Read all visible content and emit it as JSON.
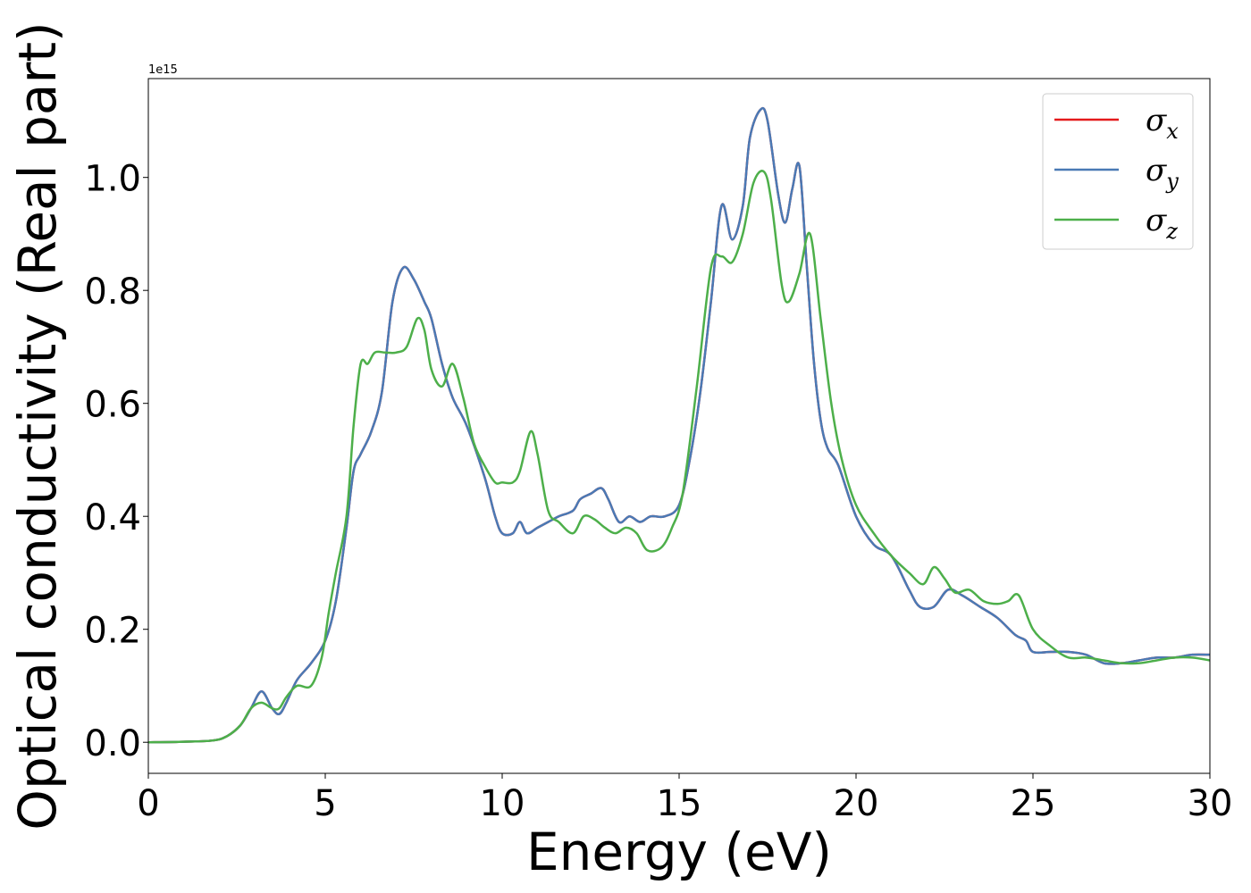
{
  "chart_data": {
    "type": "line",
    "xlabel": "Energy (eV)",
    "ylabel": "Optical conductivity (Real part)",
    "offset_label": "1e15",
    "xlim": [
      0,
      30
    ],
    "ylim": [
      -0.055,
      1.175
    ],
    "xticks": [
      0,
      5,
      10,
      15,
      20,
      25,
      30
    ],
    "xtick_labels": [
      "0",
      "5",
      "10",
      "15",
      "20",
      "25",
      "30"
    ],
    "yticks": [
      0.0,
      0.2,
      0.4,
      0.6,
      0.8,
      1.0
    ],
    "ytick_labels": [
      "0.0",
      "0.2",
      "0.4",
      "0.6",
      "0.8",
      "1.0"
    ],
    "y_multiplier": 1000000000000000.0,
    "grid": false,
    "legend_position": "top-right",
    "series": [
      {
        "name": "σx",
        "symbol": "σ",
        "subscript": "x",
        "color": "#e41a1c",
        "x": [
          0,
          1,
          1.8,
          2.2,
          2.6,
          2.9,
          3.2,
          3.5,
          3.7,
          3.9,
          4.2,
          4.6,
          5.0,
          5.3,
          5.6,
          5.8,
          6.0,
          6.3,
          6.6,
          6.9,
          7.2,
          7.5,
          7.8,
          8.0,
          8.3,
          8.6,
          9.0,
          9.5,
          9.8,
          10.0,
          10.3,
          10.5,
          10.7,
          11.0,
          11.3,
          11.6,
          12.0,
          12.2,
          12.5,
          12.8,
          13.0,
          13.3,
          13.6,
          13.9,
          14.2,
          14.6,
          15.0,
          15.3,
          15.6,
          15.9,
          16.2,
          16.5,
          16.8,
          17.0,
          17.3,
          17.5,
          17.8,
          18.0,
          18.2,
          18.4,
          18.6,
          18.8,
          19.0,
          19.2,
          19.5,
          20.0,
          20.5,
          21.0,
          21.5,
          21.8,
          22.2,
          22.6,
          23.0,
          23.5,
          24.0,
          24.5,
          24.8,
          25.0,
          25.5,
          26.0,
          26.5,
          27.0,
          27.5,
          28.0,
          28.5,
          29.0,
          29.5,
          30.0
        ],
        "y": [
          0.0,
          0.001,
          0.003,
          0.01,
          0.03,
          0.06,
          0.09,
          0.06,
          0.05,
          0.07,
          0.11,
          0.14,
          0.18,
          0.25,
          0.38,
          0.48,
          0.51,
          0.55,
          0.62,
          0.78,
          0.84,
          0.82,
          0.78,
          0.75,
          0.67,
          0.61,
          0.56,
          0.47,
          0.4,
          0.37,
          0.37,
          0.39,
          0.37,
          0.38,
          0.39,
          0.4,
          0.41,
          0.43,
          0.44,
          0.45,
          0.43,
          0.39,
          0.4,
          0.39,
          0.4,
          0.4,
          0.42,
          0.5,
          0.62,
          0.78,
          0.95,
          0.89,
          0.95,
          1.07,
          1.12,
          1.1,
          0.97,
          0.92,
          0.98,
          1.02,
          0.85,
          0.68,
          0.57,
          0.52,
          0.49,
          0.4,
          0.35,
          0.33,
          0.27,
          0.24,
          0.24,
          0.27,
          0.26,
          0.24,
          0.22,
          0.19,
          0.18,
          0.16,
          0.16,
          0.16,
          0.155,
          0.14,
          0.14,
          0.145,
          0.15,
          0.15,
          0.155,
          0.155
        ]
      },
      {
        "name": "σy",
        "symbol": "σ",
        "subscript": "y",
        "color": "#4a7ab5",
        "x": [
          0,
          1,
          1.8,
          2.2,
          2.6,
          2.9,
          3.2,
          3.5,
          3.7,
          3.9,
          4.2,
          4.6,
          5.0,
          5.3,
          5.6,
          5.8,
          6.0,
          6.3,
          6.6,
          6.9,
          7.2,
          7.5,
          7.8,
          8.0,
          8.3,
          8.6,
          9.0,
          9.5,
          9.8,
          10.0,
          10.3,
          10.5,
          10.7,
          11.0,
          11.3,
          11.6,
          12.0,
          12.2,
          12.5,
          12.8,
          13.0,
          13.3,
          13.6,
          13.9,
          14.2,
          14.6,
          15.0,
          15.3,
          15.6,
          15.9,
          16.2,
          16.5,
          16.8,
          17.0,
          17.3,
          17.5,
          17.8,
          18.0,
          18.2,
          18.4,
          18.6,
          18.8,
          19.0,
          19.2,
          19.5,
          20.0,
          20.5,
          21.0,
          21.5,
          21.8,
          22.2,
          22.6,
          23.0,
          23.5,
          24.0,
          24.5,
          24.8,
          25.0,
          25.5,
          26.0,
          26.5,
          27.0,
          27.5,
          28.0,
          28.5,
          29.0,
          29.5,
          30.0
        ],
        "y": [
          0.0,
          0.001,
          0.003,
          0.01,
          0.03,
          0.06,
          0.09,
          0.06,
          0.05,
          0.07,
          0.11,
          0.14,
          0.18,
          0.25,
          0.38,
          0.48,
          0.51,
          0.55,
          0.62,
          0.78,
          0.84,
          0.82,
          0.78,
          0.75,
          0.67,
          0.61,
          0.56,
          0.47,
          0.4,
          0.37,
          0.37,
          0.39,
          0.37,
          0.38,
          0.39,
          0.4,
          0.41,
          0.43,
          0.44,
          0.45,
          0.43,
          0.39,
          0.4,
          0.39,
          0.4,
          0.4,
          0.42,
          0.5,
          0.62,
          0.78,
          0.95,
          0.89,
          0.95,
          1.07,
          1.12,
          1.1,
          0.97,
          0.92,
          0.98,
          1.02,
          0.85,
          0.68,
          0.57,
          0.52,
          0.49,
          0.4,
          0.35,
          0.33,
          0.27,
          0.24,
          0.24,
          0.27,
          0.26,
          0.24,
          0.22,
          0.19,
          0.18,
          0.16,
          0.16,
          0.16,
          0.155,
          0.14,
          0.14,
          0.145,
          0.15,
          0.15,
          0.155,
          0.155
        ]
      },
      {
        "name": "σz",
        "symbol": "σ",
        "subscript": "z",
        "color": "#4daf4a",
        "x": [
          0,
          1,
          1.8,
          2.2,
          2.6,
          2.9,
          3.2,
          3.5,
          3.7,
          3.9,
          4.2,
          4.6,
          4.9,
          5.1,
          5.3,
          5.6,
          5.8,
          6.0,
          6.2,
          6.4,
          6.7,
          7.0,
          7.3,
          7.6,
          7.8,
          8.0,
          8.3,
          8.6,
          8.9,
          9.2,
          9.5,
          9.8,
          10.0,
          10.3,
          10.5,
          10.8,
          11.0,
          11.3,
          11.6,
          12.0,
          12.3,
          12.6,
          12.9,
          13.2,
          13.5,
          13.8,
          14.1,
          14.5,
          14.8,
          15.1,
          15.5,
          15.9,
          16.2,
          16.5,
          16.8,
          17.1,
          17.4,
          17.6,
          17.9,
          18.1,
          18.4,
          18.7,
          19.0,
          19.3,
          19.6,
          20.0,
          20.5,
          21.0,
          21.5,
          21.9,
          22.2,
          22.5,
          22.8,
          23.2,
          23.6,
          24.0,
          24.3,
          24.6,
          25.0,
          25.5,
          26.0,
          26.5,
          27.0,
          27.5,
          28.0,
          28.5,
          29.0,
          29.5,
          30.0
        ],
        "y": [
          0.0,
          0.001,
          0.003,
          0.01,
          0.03,
          0.06,
          0.07,
          0.06,
          0.06,
          0.08,
          0.1,
          0.1,
          0.15,
          0.23,
          0.3,
          0.4,
          0.56,
          0.67,
          0.67,
          0.69,
          0.69,
          0.69,
          0.7,
          0.75,
          0.73,
          0.66,
          0.63,
          0.67,
          0.61,
          0.53,
          0.49,
          0.46,
          0.46,
          0.46,
          0.48,
          0.55,
          0.51,
          0.41,
          0.39,
          0.37,
          0.4,
          0.395,
          0.38,
          0.37,
          0.38,
          0.37,
          0.34,
          0.345,
          0.38,
          0.44,
          0.63,
          0.84,
          0.86,
          0.85,
          0.9,
          0.99,
          1.01,
          0.96,
          0.81,
          0.78,
          0.83,
          0.9,
          0.75,
          0.6,
          0.5,
          0.42,
          0.37,
          0.33,
          0.3,
          0.28,
          0.31,
          0.29,
          0.265,
          0.27,
          0.25,
          0.245,
          0.25,
          0.26,
          0.2,
          0.17,
          0.15,
          0.15,
          0.145,
          0.14,
          0.14,
          0.145,
          0.15,
          0.15,
          0.145
        ]
      }
    ]
  }
}
